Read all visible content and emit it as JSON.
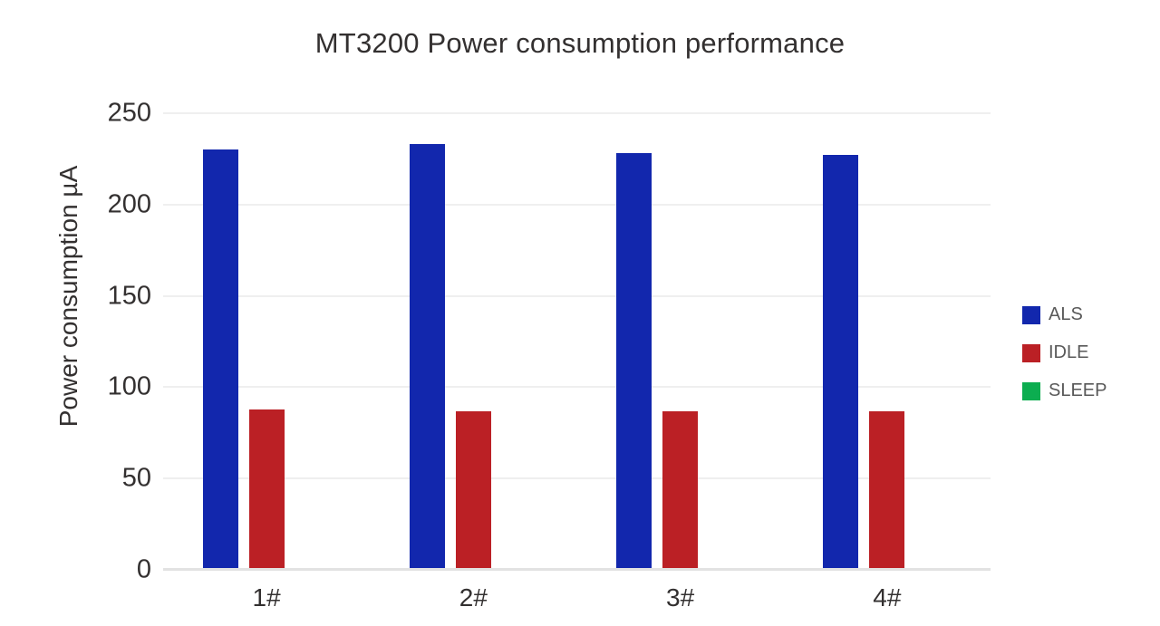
{
  "chart_data": {
    "type": "bar",
    "title": "MT3200 Power consumption performance",
    "ylabel": "Power consumption µA",
    "xlabel": "",
    "categories": [
      "1#",
      "2#",
      "3#",
      "4#"
    ],
    "series": [
      {
        "name": "ALS",
        "color": "#1227ad",
        "values": [
          230,
          233,
          228,
          227
        ]
      },
      {
        "name": "IDLE",
        "color": "#bb2025",
        "values": [
          88,
          87,
          87,
          87
        ]
      },
      {
        "name": "SLEEP",
        "color": "#0cad50",
        "bar_color": "#a0dcb8",
        "values": [
          1,
          1,
          1,
          1
        ]
      }
    ],
    "ylim": [
      0,
      250
    ],
    "yticks": [
      0,
      50,
      100,
      150,
      200,
      250
    ],
    "grid": true,
    "legend_position": "right"
  },
  "colors": {
    "background": "#ffffff",
    "grid": "#efefef",
    "baseline": "#e2e2e2",
    "title_text": "#333030",
    "tick_text": "#333030",
    "legend_text": "#595959"
  }
}
